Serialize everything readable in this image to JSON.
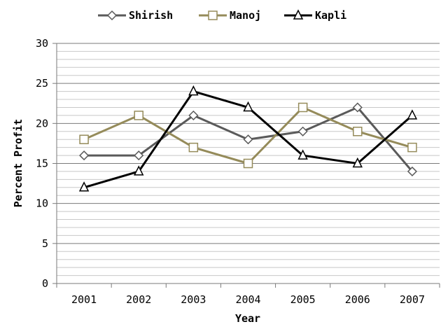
{
  "chart_data": {
    "type": "line",
    "title": "",
    "xlabel": "Year",
    "ylabel": "Percent Profit",
    "categories": [
      "2001",
      "2002",
      "2003",
      "2004",
      "2005",
      "2006",
      "2007"
    ],
    "ylim": [
      0,
      30
    ],
    "yticks": [
      "0",
      "5",
      "10",
      "15",
      "20",
      "25",
      "30"
    ],
    "grid": true,
    "legend_position": "top",
    "series": [
      {
        "name": "Shirish",
        "values": [
          16,
          16,
          21,
          18,
          19,
          22,
          14
        ],
        "color": "#5a5a5a",
        "marker": "diamond"
      },
      {
        "name": "Manoj",
        "values": [
          18,
          21,
          17,
          15,
          22,
          19,
          17
        ],
        "color": "#958b5a",
        "marker": "square"
      },
      {
        "name": "Kapli",
        "values": [
          12,
          14,
          24,
          22,
          16,
          15,
          21
        ],
        "color": "#000000",
        "marker": "triangle"
      }
    ]
  }
}
